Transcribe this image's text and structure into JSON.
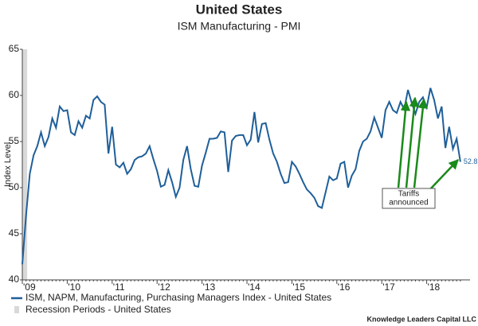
{
  "chart_data": {
    "type": "line",
    "title": "United States",
    "subtitle": "ISM Manufacturing - PMI",
    "y_label": "Index Level",
    "categories": [
      "'09",
      null,
      null,
      null,
      null,
      null,
      null,
      null,
      null,
      null,
      null,
      null,
      "'10",
      null,
      null,
      null,
      null,
      null,
      null,
      null,
      null,
      null,
      null,
      null,
      "'11",
      null,
      null,
      null,
      null,
      null,
      null,
      null,
      null,
      null,
      null,
      null,
      "'12",
      null,
      null,
      null,
      null,
      null,
      null,
      null,
      null,
      null,
      null,
      null,
      "'13",
      null,
      null,
      null,
      null,
      null,
      null,
      null,
      null,
      null,
      null,
      null,
      "'14",
      null,
      null,
      null,
      null,
      null,
      null,
      null,
      null,
      null,
      null,
      null,
      "'15",
      null,
      null,
      null,
      null,
      null,
      null,
      null,
      null,
      null,
      null,
      null,
      "'16",
      null,
      null,
      null,
      null,
      null,
      null,
      null,
      null,
      null,
      null,
      null,
      "'17",
      null,
      null,
      null,
      null,
      null,
      null,
      null,
      null,
      null,
      null,
      null,
      "'18",
      null,
      null,
      null,
      null,
      null,
      null,
      null,
      null,
      null
    ],
    "series": [
      {
        "name": "ISM, NAPM, Manufacturing, Purchasing Managers Index - United States",
        "color": "#1f5f99",
        "values": [
          41.7,
          47,
          51.5,
          53.5,
          54.5,
          56,
          54.5,
          55.5,
          57.5,
          56.5,
          58.8,
          58.3,
          58.4,
          56.0,
          55.7,
          57.2,
          56.5,
          57.8,
          57.5,
          59.5,
          59.9,
          59.3,
          59.0,
          53.7,
          56.6,
          52.5,
          52.2,
          52.7,
          51.5,
          52.0,
          53.0,
          53.3,
          53.4,
          53.7,
          54.5,
          53.1,
          51.8,
          50.1,
          50.3,
          51.9,
          50.6,
          49.0,
          50.0,
          53.0,
          54.5,
          52.0,
          50.2,
          50.1,
          52.4,
          53.8,
          55.3,
          55.3,
          55.4,
          56.1,
          56.0,
          51.7,
          55.1,
          55.6,
          55.7,
          55.7,
          54.6,
          55.2,
          58.2,
          54.9,
          56.9,
          57.0,
          55.2,
          53.7,
          52.8,
          51.5,
          50.5,
          50.6,
          52.8,
          52.3,
          51.5,
          50.6,
          49.8,
          49.4,
          48.9,
          48.0,
          47.8,
          49.5,
          51.2,
          50.8,
          51.0,
          52.6,
          52.8,
          50.0,
          51.3,
          52.0,
          54.0,
          55.0,
          55.3,
          56.1,
          57.6,
          56.5,
          55.4,
          58.4,
          59.3,
          58.4,
          58.1,
          59.3,
          58.5,
          60.6,
          59.2,
          58.0,
          59.3,
          59.8,
          58.7,
          60.8,
          59.5,
          57.5,
          58.8,
          54.3,
          56.6,
          54.2,
          55.3,
          52.8
        ]
      }
    ],
    "shading": {
      "name": "Recession Periods - United States",
      "color": "#d9d9d9"
    },
    "annotation": [
      "Tariffs",
      "announced"
    ],
    "annotation_color": "#1a8a1a",
    "ylim": [
      40,
      65
    ],
    "yticks": [
      40,
      45,
      50,
      55,
      60,
      65
    ],
    "source": "Knowledge Leaders Capital LLC"
  }
}
